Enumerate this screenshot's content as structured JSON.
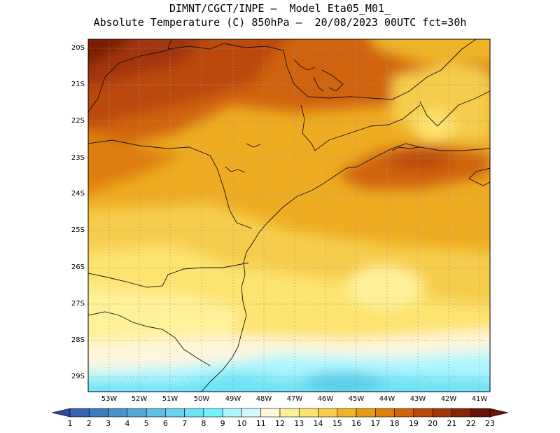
{
  "header": {
    "line1": "DIMNT/CGCT/INPE –  Model Eta05_M01_",
    "line2": "Absolute Temperature (C) 850hPa –  20/08/2023 00UTC fct=30h"
  },
  "axes": {
    "lat_labels": [
      "20S",
      "21S",
      "22S",
      "23S",
      "24S",
      "25S",
      "26S",
      "27S",
      "28S",
      "29S"
    ],
    "lon_labels": [
      "53W",
      "52W",
      "51W",
      "50W",
      "49W",
      "48W",
      "47W",
      "46W",
      "45W",
      "44W",
      "43W",
      "42W",
      "41W"
    ]
  },
  "colorbar": {
    "labels": [
      "1",
      "2",
      "3",
      "4",
      "5",
      "6",
      "7",
      "8",
      "9",
      "10",
      "11",
      "12",
      "13",
      "14",
      "15",
      "16",
      "17",
      "18",
      "19",
      "20",
      "21",
      "22",
      "23"
    ],
    "colors": [
      "#2b4a9c",
      "#3565b0",
      "#3b7cc0",
      "#4a92cc",
      "#55a8d8",
      "#5ebee4",
      "#67d2ee",
      "#6ee3f6",
      "#74f2fb",
      "#aef6ff",
      "#d8f8ff",
      "#fff6dc",
      "#fff19a",
      "#fde370",
      "#f6cd4c",
      "#f0b428",
      "#e99a12",
      "#df7e0a",
      "#d06408",
      "#bb4a08",
      "#a23608",
      "#8a2408",
      "#6a1205"
    ]
  },
  "map": {
    "region": "South / Southeast Brazil",
    "variable": "Temperature 850hPa (C)"
  }
}
